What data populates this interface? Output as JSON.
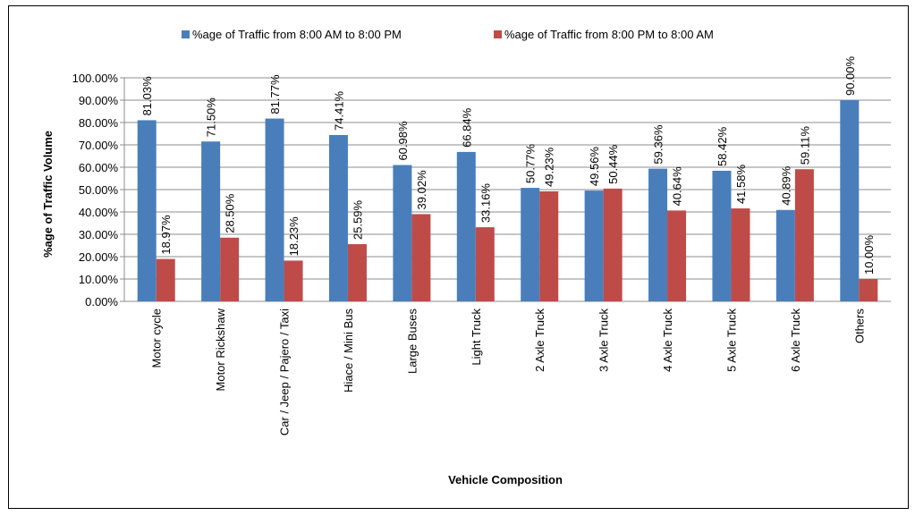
{
  "chart_data": {
    "type": "bar",
    "title": "",
    "xlabel": "Vehicle Composition",
    "ylabel": "%age of Traffic Volume",
    "ylim": [
      0,
      100
    ],
    "y_ticks": [
      "0.00%",
      "10.00%",
      "20.00%",
      "30.00%",
      "40.00%",
      "50.00%",
      "60.00%",
      "70.00%",
      "80.00%",
      "90.00%",
      "100.00%"
    ],
    "grid": true,
    "legend_position": "top",
    "categories": [
      "Motor cycle",
      "Motor Rickshaw",
      "Car / Jeep / Pajero / Taxi",
      "Hiace / Mini Bus",
      "Large Buses",
      "Light Truck",
      "2 Axle Truck",
      "3 Axle Truck",
      "4 Axle Truck",
      "5 Axle Truck",
      "6 Axle Truck",
      "Others"
    ],
    "series": [
      {
        "name": "%age of Traffic from 8:00 AM to 8:00 PM",
        "color": "#4a7ebb",
        "values": [
          81.03,
          71.5,
          81.77,
          74.41,
          60.98,
          66.84,
          50.77,
          49.56,
          59.36,
          58.42,
          40.89,
          90.0
        ],
        "labels": [
          "81.03%",
          "71.50%",
          "81.77%",
          "74.41%",
          "60.98%",
          "66.84%",
          "50.77%",
          "49.56%",
          "59.36%",
          "58.42%",
          "40.89%",
          "90.00%"
        ]
      },
      {
        "name": "%age of Traffic from 8:00 PM to 8:00 AM",
        "color": "#be4b48",
        "values": [
          18.97,
          28.5,
          18.23,
          25.59,
          39.02,
          33.16,
          49.23,
          50.44,
          40.64,
          41.58,
          59.11,
          10.0
        ],
        "labels": [
          "18.97%",
          "28.50%",
          "18.23%",
          "25.59%",
          "39.02%",
          "33.16%",
          "49.23%",
          "50.44%",
          "40.64%",
          "41.58%",
          "59.11%",
          "10.00%"
        ]
      }
    ]
  }
}
